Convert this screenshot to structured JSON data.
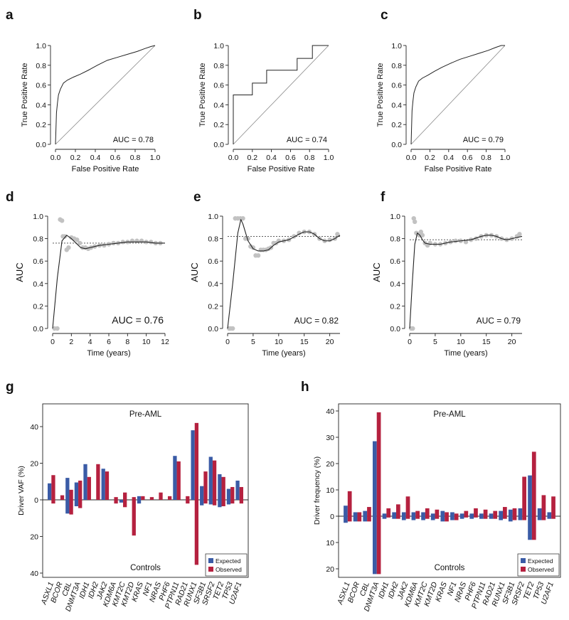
{
  "panel_labels": [
    "a",
    "b",
    "c",
    "d",
    "e",
    "f",
    "g",
    "h"
  ],
  "colors": {
    "expected": "#3a5ba6",
    "observed": "#b5213f",
    "dots": "#c2c2c2",
    "line": "#222222",
    "axis": "#222222",
    "diag": "#888888"
  },
  "chart_data": [
    {
      "id": "a",
      "type": "line",
      "title": "",
      "xlabel": "False Positive Rate",
      "ylabel": "True Positive Rate",
      "xlim": [
        0,
        1
      ],
      "ylim": [
        0,
        1
      ],
      "xticks": [
        "0.0",
        "0.2",
        "0.4",
        "0.6",
        "0.8",
        "1.0"
      ],
      "yticks": [
        "0.0",
        "0.2",
        "0.4",
        "0.6",
        "0.8",
        "1.0"
      ],
      "auc_label": "AUC =  0.78",
      "x": [
        0,
        0.01,
        0.02,
        0.03,
        0.05,
        0.08,
        0.12,
        0.18,
        0.25,
        0.33,
        0.42,
        0.52,
        0.62,
        0.72,
        0.82,
        0.9,
        0.96,
        1.0
      ],
      "y": [
        0,
        0.32,
        0.42,
        0.5,
        0.56,
        0.62,
        0.65,
        0.68,
        0.71,
        0.75,
        0.8,
        0.85,
        0.88,
        0.91,
        0.94,
        0.97,
        0.99,
        1.0
      ]
    },
    {
      "id": "b",
      "type": "line",
      "title": "",
      "xlabel": "False Positive Rate",
      "ylabel": "True Positive Rate",
      "xlim": [
        0,
        1
      ],
      "ylim": [
        0,
        1
      ],
      "xticks": [
        "0.0",
        "0.2",
        "0.4",
        "0.6",
        "0.8",
        "1.0"
      ],
      "yticks": [
        "0.0",
        "0.2",
        "0.4",
        "0.6",
        "0.8",
        "1.0"
      ],
      "auc_label": "AUC =  0.74",
      "x": [
        0,
        0,
        0.2,
        0.2,
        0.35,
        0.35,
        0.67,
        0.67,
        0.83,
        0.83,
        1.0
      ],
      "y": [
        0,
        0.5,
        0.5,
        0.62,
        0.62,
        0.75,
        0.75,
        0.87,
        0.87,
        1.0,
        1.0
      ]
    },
    {
      "id": "c",
      "type": "line",
      "title": "",
      "xlabel": "False Positive Rate",
      "ylabel": "True Positive Rate",
      "xlim": [
        0,
        1
      ],
      "ylim": [
        0,
        1
      ],
      "xticks": [
        "0.0",
        "0.2",
        "0.4",
        "0.6",
        "0.8",
        "1.0"
      ],
      "yticks": [
        "0.0",
        "0.2",
        "0.4",
        "0.6",
        "0.8",
        "1.0"
      ],
      "auc_label": "AUC =  0.79",
      "x": [
        0,
        0.01,
        0.02,
        0.03,
        0.05,
        0.08,
        0.12,
        0.18,
        0.25,
        0.33,
        0.42,
        0.52,
        0.62,
        0.72,
        0.82,
        0.9,
        0.96,
        1.0
      ],
      "y": [
        0,
        0.34,
        0.44,
        0.52,
        0.58,
        0.64,
        0.67,
        0.7,
        0.74,
        0.78,
        0.82,
        0.86,
        0.89,
        0.92,
        0.95,
        0.98,
        1.0,
        1.0
      ]
    },
    {
      "id": "d",
      "type": "scatter",
      "title": "",
      "xlabel": "Time (years)",
      "ylabel": "AUC",
      "xlim": [
        0,
        12
      ],
      "ylim": [
        0,
        1
      ],
      "xticks": [
        "0",
        "2",
        "4",
        "6",
        "8",
        "10",
        "12"
      ],
      "yticks": [
        "0.0",
        "0.2",
        "0.4",
        "0.6",
        "0.8",
        "1.0"
      ],
      "auc_label": "AUC =  0.76",
      "reference_y": 0.76,
      "points": [
        [
          0.2,
          0
        ],
        [
          0.5,
          0
        ],
        [
          0.8,
          0.97
        ],
        [
          1.0,
          0.96
        ],
        [
          1.1,
          0.82
        ],
        [
          1.3,
          0.82
        ],
        [
          1.5,
          0.7
        ],
        [
          1.7,
          0.72
        ],
        [
          2.0,
          0.81
        ],
        [
          2.3,
          0.8
        ],
        [
          2.6,
          0.79
        ],
        [
          2.9,
          0.76
        ],
        [
          3.2,
          0.72
        ],
        [
          3.5,
          0.72
        ],
        [
          3.8,
          0.71
        ],
        [
          4.1,
          0.72
        ],
        [
          4.5,
          0.73
        ],
        [
          5.0,
          0.74
        ],
        [
          5.5,
          0.74
        ],
        [
          6.0,
          0.75
        ],
        [
          6.5,
          0.76
        ],
        [
          7.0,
          0.76
        ],
        [
          7.5,
          0.77
        ],
        [
          8.0,
          0.77
        ],
        [
          8.5,
          0.78
        ],
        [
          9.0,
          0.78
        ],
        [
          9.5,
          0.78
        ],
        [
          10.0,
          0.77
        ],
        [
          10.5,
          0.77
        ],
        [
          11.0,
          0.76
        ],
        [
          11.5,
          0.76
        ]
      ],
      "smooth_x": [
        0,
        0.5,
        1.0,
        1.5,
        2.0,
        2.5,
        3.0,
        3.5,
        4.0,
        5.0,
        6.0,
        7.0,
        8.0,
        9.0,
        10.0,
        11.0,
        12.0
      ],
      "smooth_y": [
        0,
        0.45,
        0.78,
        0.83,
        0.8,
        0.76,
        0.72,
        0.71,
        0.72,
        0.74,
        0.75,
        0.76,
        0.77,
        0.77,
        0.77,
        0.76,
        0.76
      ]
    },
    {
      "id": "e",
      "type": "scatter",
      "title": "",
      "xlabel": "Time (years)",
      "ylabel": "AUC",
      "xlim": [
        0,
        22
      ],
      "ylim": [
        0,
        1
      ],
      "xticks": [
        "0",
        "5",
        "10",
        "15",
        "20"
      ],
      "yticks": [
        "0.0",
        "0.2",
        "0.4",
        "0.6",
        "0.8",
        "1.0"
      ],
      "auc_label": "AUC =  0.82",
      "reference_y": 0.82,
      "points": [
        [
          0.3,
          0
        ],
        [
          0.6,
          0
        ],
        [
          1.0,
          0
        ],
        [
          1.5,
          0.98
        ],
        [
          2.0,
          0.98
        ],
        [
          2.5,
          0.98
        ],
        [
          3.0,
          0.98
        ],
        [
          3.5,
          0.8
        ],
        [
          4.0,
          0.8
        ],
        [
          4.5,
          0.73
        ],
        [
          5.0,
          0.72
        ],
        [
          5.5,
          0.65
        ],
        [
          6.0,
          0.65
        ],
        [
          6.5,
          0.7
        ],
        [
          7.0,
          0.7
        ],
        [
          7.5,
          0.7
        ],
        [
          8.0,
          0.71
        ],
        [
          8.5,
          0.72
        ],
        [
          9.0,
          0.76
        ],
        [
          9.5,
          0.76
        ],
        [
          10.0,
          0.78
        ],
        [
          11.0,
          0.78
        ],
        [
          12.0,
          0.79
        ],
        [
          13.0,
          0.82
        ],
        [
          14.0,
          0.85
        ],
        [
          15.0,
          0.86
        ],
        [
          16.0,
          0.86
        ],
        [
          17.0,
          0.84
        ],
        [
          18.0,
          0.8
        ],
        [
          19.0,
          0.78
        ],
        [
          20.0,
          0.79
        ],
        [
          21.0,
          0.8
        ],
        [
          21.5,
          0.84
        ]
      ],
      "smooth_x": [
        0,
        1,
        2,
        2.6,
        3,
        4,
        5,
        6,
        7,
        8,
        9,
        10,
        12,
        14,
        15,
        16,
        17,
        18,
        19,
        20,
        21,
        22
      ],
      "smooth_y": [
        0,
        0.4,
        0.85,
        0.97,
        0.93,
        0.78,
        0.71,
        0.69,
        0.69,
        0.7,
        0.74,
        0.77,
        0.79,
        0.84,
        0.86,
        0.86,
        0.84,
        0.8,
        0.78,
        0.78,
        0.8,
        0.83
      ]
    },
    {
      "id": "f",
      "type": "scatter",
      "title": "",
      "xlabel": "Time (years)",
      "ylabel": "AUC",
      "xlim": [
        0,
        22
      ],
      "ylim": [
        0,
        1
      ],
      "xticks": [
        "0",
        "5",
        "10",
        "15",
        "20"
      ],
      "yticks": [
        "0.0",
        "0.2",
        "0.4",
        "0.6",
        "0.8",
        "1.0"
      ],
      "auc_label": "AUC =  0.79",
      "reference_y": 0.79,
      "points": [
        [
          0.3,
          0
        ],
        [
          0.6,
          0
        ],
        [
          0.8,
          0.98
        ],
        [
          1.0,
          0.95
        ],
        [
          1.3,
          0.85
        ],
        [
          1.6,
          0.84
        ],
        [
          1.9,
          0.83
        ],
        [
          2.2,
          0.86
        ],
        [
          2.5,
          0.83
        ],
        [
          3.0,
          0.76
        ],
        [
          3.5,
          0.74
        ],
        [
          4.0,
          0.76
        ],
        [
          5.0,
          0.75
        ],
        [
          6.0,
          0.75
        ],
        [
          7.0,
          0.76
        ],
        [
          8.0,
          0.77
        ],
        [
          9.0,
          0.78
        ],
        [
          10.0,
          0.78
        ],
        [
          11.0,
          0.77
        ],
        [
          12.0,
          0.79
        ],
        [
          13.0,
          0.8
        ],
        [
          14.0,
          0.82
        ],
        [
          15.0,
          0.83
        ],
        [
          16.0,
          0.83
        ],
        [
          17.0,
          0.82
        ],
        [
          18.0,
          0.8
        ],
        [
          19.0,
          0.79
        ],
        [
          20.0,
          0.8
        ],
        [
          21.0,
          0.82
        ],
        [
          21.5,
          0.84
        ]
      ],
      "smooth_x": [
        0,
        0.5,
        1.0,
        1.5,
        2.0,
        2.5,
        3.0,
        4.0,
        5.0,
        6.0,
        8.0,
        10.0,
        12.0,
        14.0,
        15.0,
        16.0,
        17.0,
        18.0,
        19.0,
        20.0,
        21.0,
        22.0
      ],
      "smooth_y": [
        0,
        0.4,
        0.75,
        0.85,
        0.83,
        0.79,
        0.76,
        0.75,
        0.75,
        0.75,
        0.77,
        0.78,
        0.79,
        0.82,
        0.83,
        0.83,
        0.82,
        0.8,
        0.79,
        0.8,
        0.81,
        0.82
      ]
    },
    {
      "id": "g",
      "type": "bar",
      "title": "Pre-AML",
      "subtitle": "Controls",
      "xlabel": "",
      "ylabel": "Driver VAF (%)",
      "ylim": [
        -40,
        50
      ],
      "yticks_up": [
        "20",
        "40"
      ],
      "yticks_down": [
        "20",
        "40"
      ],
      "zero_label": "0",
      "legend": [
        "Expected",
        "Observed"
      ],
      "categories": [
        "ASXL1",
        "BCOR",
        "CBL",
        "DNMT3A",
        "IDH1",
        "IDH2",
        "JAK2",
        "KDM6A",
        "KMT2C",
        "KMT2D",
        "KRAS",
        "NF1",
        "NRAS",
        "PHF6",
        "PTPN11",
        "RAD21",
        "RUNX1",
        "SF3B1",
        "SRSF2",
        "TET2",
        "TP53",
        "U2AF1"
      ],
      "series": [
        {
          "name": "Expected",
          "up": [
            9,
            0,
            12,
            9.5,
            19.5,
            0,
            17,
            0,
            0,
            0,
            2,
            0,
            0,
            0,
            24,
            0,
            38,
            7.5,
            23.5,
            14,
            6,
            10.5
          ],
          "down": [
            0,
            0,
            7.5,
            3.5,
            0,
            0,
            0,
            0,
            1.5,
            0,
            2,
            0,
            0,
            0,
            0,
            0,
            0,
            3,
            2.5,
            4,
            2.5,
            0
          ]
        },
        {
          "name": "Observed",
          "up": [
            13.5,
            2.5,
            5.5,
            10.5,
            12.5,
            19.5,
            15.5,
            1.5,
            4,
            1.5,
            2,
            1.5,
            4,
            2,
            21,
            2,
            42,
            15.5,
            21.5,
            12.5,
            7,
            7
          ],
          "down": [
            2,
            0,
            8,
            4.5,
            0,
            0,
            0,
            2,
            4,
            19.5,
            0,
            0,
            0,
            0,
            0,
            2,
            35.5,
            2,
            3,
            3.5,
            2,
            2
          ]
        }
      ]
    },
    {
      "id": "h",
      "type": "bar",
      "title": "Pre-AML",
      "subtitle": "Controls",
      "xlabel": "",
      "ylabel": "Driver frequency (%)",
      "ylim": [
        -22,
        42
      ],
      "yticks_up": [
        "10",
        "20",
        "30",
        "40"
      ],
      "yticks_down": [
        "10",
        "20"
      ],
      "zero_label": "0",
      "legend": [
        "Expected",
        "Observed"
      ],
      "categories": [
        "ASXL1",
        "BCOR",
        "CBL",
        "DNMT3A",
        "IDH1",
        "IDH2",
        "JAK2",
        "KDM6A",
        "KMT2C",
        "KMT2D",
        "KRAS",
        "NF1",
        "NRAS",
        "PHF6",
        "PTPN11",
        "RAD21",
        "RUNX1",
        "SF3B1",
        "SRSF2",
        "TET2",
        "TP53",
        "U2AF1"
      ],
      "series": [
        {
          "name": "Expected",
          "up": [
            4,
            1.5,
            2,
            28.5,
            1,
            1.5,
            1.5,
            1.5,
            1.5,
            1,
            2,
            1.5,
            1,
            1,
            1,
            1,
            2,
            2.5,
            3,
            15.5,
            3,
            1.5
          ],
          "down": [
            2.5,
            2,
            2,
            22,
            1,
            1,
            1.5,
            1.5,
            1.5,
            1.5,
            2,
            1.5,
            1,
            1,
            1,
            1,
            1.5,
            2,
            1.5,
            9,
            1.5,
            1
          ]
        },
        {
          "name": "Observed",
          "up": [
            9.5,
            1.5,
            3.5,
            39.5,
            3,
            4.5,
            7.5,
            2,
            3,
            2.5,
            1.5,
            1,
            2,
            3,
            2.5,
            2,
            3.5,
            3,
            15,
            24.5,
            8,
            7.5
          ],
          "down": [
            2,
            2,
            2,
            22,
            0.5,
            1,
            1,
            1,
            1,
            1,
            2,
            1.5,
            0.5,
            0.5,
            1,
            1,
            1,
            1.5,
            1.5,
            9,
            1.5,
            1
          ]
        }
      ]
    }
  ]
}
